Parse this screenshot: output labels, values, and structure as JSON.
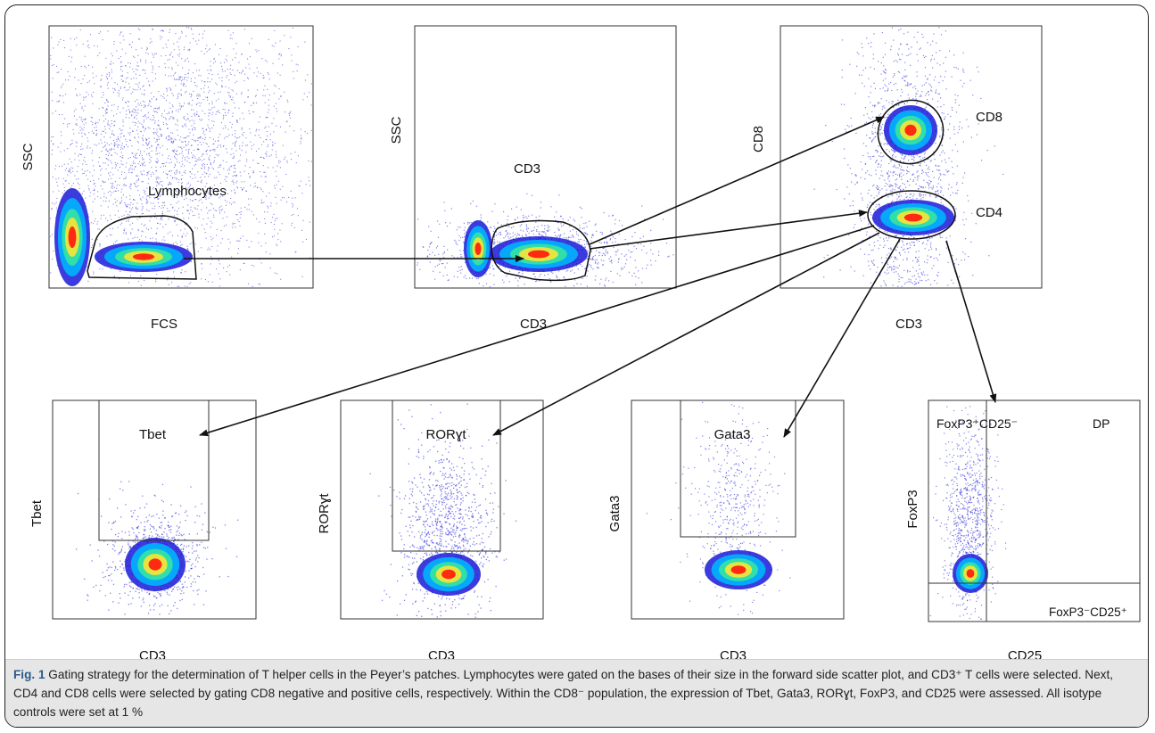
{
  "figure": {
    "panels": [
      {
        "id": "fcs-ssc",
        "xlabel": "FCS",
        "ylabel": "SSC",
        "gate_label": "Lymphocytes"
      },
      {
        "id": "cd3-ssc",
        "xlabel": "CD3",
        "ylabel": "SSC",
        "gate_label": "CD3"
      },
      {
        "id": "cd3-cd8",
        "xlabel": "CD3",
        "ylabel": "CD8",
        "gate_labels": [
          "CD8",
          "CD4"
        ]
      },
      {
        "id": "cd3-tbet",
        "xlabel": "CD3",
        "ylabel": "Tbet",
        "gate_label": "Tbet"
      },
      {
        "id": "cd3-rorgt",
        "xlabel": "CD3",
        "ylabel": "RORɣt",
        "gate_label": "RORɣt"
      },
      {
        "id": "cd3-gata3",
        "xlabel": "CD3",
        "ylabel": "Gata3",
        "gate_label": "Gata3"
      },
      {
        "id": "cd25-foxp3",
        "xlabel": "CD25",
        "ylabel": "FoxP3",
        "quadrant_labels": [
          "FoxP3⁺CD25⁻",
          "DP",
          "FoxP3⁻CD25⁺"
        ]
      }
    ],
    "heat_colors": [
      "#1a1ad8",
      "#00b4ff",
      "#35e4a0",
      "#f0e43a",
      "#ff2a12"
    ]
  },
  "caption": {
    "label": "Fig. 1",
    "text": "Gating strategy for the determination of T helper cells in the Peyer’s patches. Lymphocytes were gated on the bases of their size in the forward side scatter plot, and CD3⁺ T cells were selected. Next, CD4 and CD8 cells were selected by gating CD8 negative and positive cells, respectively. Within the CD8⁻ population, the expression of Tbet, Gata3, RORɣt, FoxP3, and CD25 were assessed. All isotype controls were set at 1 %"
  }
}
